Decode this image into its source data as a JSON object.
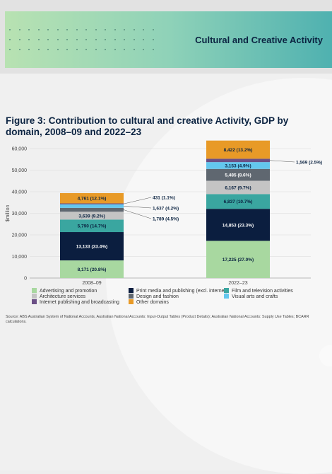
{
  "header": {
    "title": "Cultural and Creative Activity"
  },
  "figure": {
    "title": "Figure 3: Contribution to cultural and creative Activity, GDP by domain, 2008–09 and 2022–23"
  },
  "chart_data": {
    "type": "bar",
    "stacked": true,
    "categories": [
      "2008–09",
      "2022–23"
    ],
    "ylabel": "$million",
    "ylim": [
      0,
      60000
    ],
    "yticks": [
      "0",
      "10,000",
      "20,000",
      "30,000",
      "40,000",
      "50,000",
      "60,000"
    ],
    "ytick_values": [
      0,
      10000,
      20000,
      30000,
      40000,
      50000,
      60000
    ],
    "grid": true,
    "legend_position": "bottom",
    "series": [
      {
        "name": "Advertising and promotion",
        "color": "#a8d8a0",
        "label_color": "#0b2341",
        "values": [
          8171,
          17225
        ],
        "labels": [
          "8,171 (20.8%)",
          "17,225 (27.0%)"
        ]
      },
      {
        "name": "Print media and publishing (excl. internet)",
        "color": "#0b1e3f",
        "label_color": "#ffffff",
        "values": [
          13133,
          14853
        ],
        "labels": [
          "13,133 (33.4%)",
          "14,853 (23.3%)"
        ]
      },
      {
        "name": "Film and television activities",
        "color": "#3aa6a0",
        "label_color": "#0b2341",
        "values": [
          5790,
          6837
        ],
        "labels": [
          "5,790 (14.7%)",
          "6,837 (10.7%)"
        ]
      },
      {
        "name": "Architecture services",
        "color": "#c4c4c4",
        "label_color": "#0b2341",
        "values": [
          3639,
          6167
        ],
        "labels": [
          "3,639 (9.2%)",
          "6,167 (9.7%)"
        ]
      },
      {
        "name": "Design and fashion",
        "color": "#5f6770",
        "label_color": "#ffffff",
        "values": [
          1789,
          5485
        ],
        "labels": [
          "1,789 (4.5%)",
          "5,485 (8.6%)"
        ]
      },
      {
        "name": "Visual arts and crafts",
        "color": "#63c7ee",
        "label_color": "#0b2341",
        "values": [
          1637,
          3153
        ],
        "labels": [
          "1,637 (4.2%)",
          "3,153 (4.9%)"
        ]
      },
      {
        "name": "Internet publishing and broadcasting",
        "color": "#6b4f86",
        "label_color": "#ffffff",
        "values": [
          431,
          1569
        ],
        "labels": [
          "431 (1.1%)",
          "1,569 (2.5%)"
        ]
      },
      {
        "name": "Other domains",
        "color": "#e89a27",
        "label_color": "#0b2341",
        "values": [
          4761,
          8422
        ],
        "labels": [
          "4,761 (12.1%)",
          "8,422 (13.2%)"
        ]
      }
    ]
  },
  "source": "Source: ABS Australian System of National Accounts, Australian National Accounts: Input-Output Tables (Product Details); Australian National Accounts: Supply Use Tables; BCARR calculations."
}
